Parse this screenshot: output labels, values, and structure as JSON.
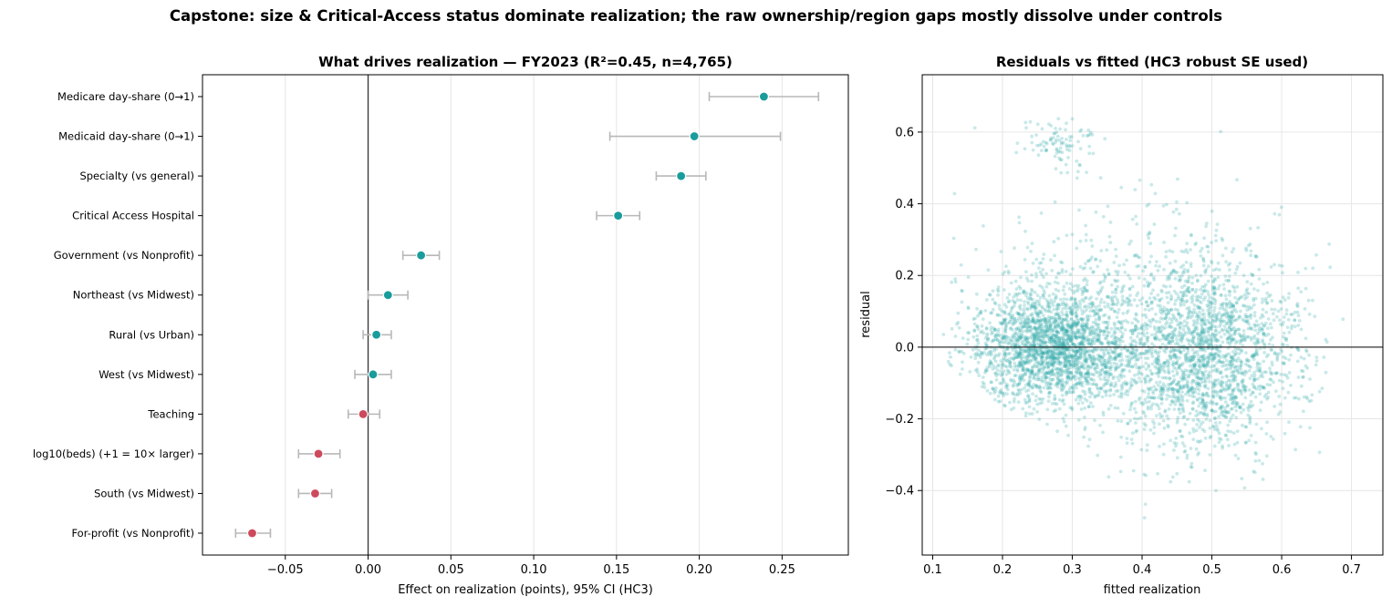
{
  "suptitle": "Capstone: size & Critical-Access status dominate realization; the raw ownership/region gaps mostly dissolve under controls",
  "colors": {
    "positive": "#1a9c9c",
    "negative": "#cc4a5c",
    "ci": "#b8b8b8",
    "scatter": "#2aa6a6",
    "zero_line": "#333333",
    "grid": "#e6e6e6"
  },
  "chart_data": [
    {
      "type": "scatter",
      "subtype": "coefficient-plot",
      "title": "What drives realization — FY2023 (R²=0.45, n=4,765)",
      "xlabel": "Effect on realization (points), 95% CI (HC3)",
      "ylabel": "",
      "xlim": [
        -0.1,
        0.29
      ],
      "xticks": [
        -0.05,
        0.0,
        0.05,
        0.1,
        0.15,
        0.2,
        0.25
      ],
      "xtick_labels": [
        "−0.05",
        "0.00",
        "0.05",
        "0.10",
        "0.15",
        "0.20",
        "0.25"
      ],
      "grid": "x",
      "items": [
        {
          "label": "Medicare day-share (0→1)",
          "est": 0.239,
          "lo": 0.206,
          "hi": 0.272
        },
        {
          "label": "Medicaid day-share (0→1)",
          "est": 0.197,
          "lo": 0.146,
          "hi": 0.249
        },
        {
          "label": "Specialty (vs general)",
          "est": 0.189,
          "lo": 0.174,
          "hi": 0.204
        },
        {
          "label": "Critical Access Hospital",
          "est": 0.151,
          "lo": 0.138,
          "hi": 0.164
        },
        {
          "label": "Government (vs Nonprofit)",
          "est": 0.032,
          "lo": 0.021,
          "hi": 0.043
        },
        {
          "label": "Northeast (vs Midwest)",
          "est": 0.012,
          "lo": 0.0,
          "hi": 0.024
        },
        {
          "label": "Rural (vs Urban)",
          "est": 0.005,
          "lo": -0.003,
          "hi": 0.014
        },
        {
          "label": "West (vs Midwest)",
          "est": 0.003,
          "lo": -0.008,
          "hi": 0.014
        },
        {
          "label": "Teaching",
          "est": -0.003,
          "lo": -0.012,
          "hi": 0.007
        },
        {
          "label": "log10(beds)  (+1 = 10× larger)",
          "est": -0.03,
          "lo": -0.042,
          "hi": -0.017
        },
        {
          "label": "South (vs Midwest)",
          "est": -0.032,
          "lo": -0.042,
          "hi": -0.022
        },
        {
          "label": "For-profit (vs Nonprofit)",
          "est": -0.07,
          "lo": -0.08,
          "hi": -0.059
        }
      ]
    },
    {
      "type": "scatter",
      "title": "Residuals vs fitted (HC3 robust SE used)",
      "xlabel": "fitted realization",
      "ylabel": "residual",
      "xlim": [
        0.085,
        0.745
      ],
      "ylim": [
        -0.58,
        0.76
      ],
      "xticks": [
        0.1,
        0.2,
        0.3,
        0.4,
        0.5,
        0.6,
        0.7
      ],
      "xtick_labels": [
        "0.1",
        "0.2",
        "0.3",
        "0.4",
        "0.5",
        "0.6",
        "0.7"
      ],
      "yticks": [
        -0.4,
        -0.2,
        0.0,
        0.2,
        0.4,
        0.6
      ],
      "ytick_labels": [
        "−0.4",
        "−0.2",
        "0.0",
        "0.2",
        "0.4",
        "0.6"
      ],
      "grid": "both",
      "n_points": 4765,
      "clusters": [
        {
          "x_mean": 0.27,
          "x_sd": 0.055,
          "y_mean": 0.0,
          "y_sd": 0.08,
          "share": 0.45
        },
        {
          "x_mean": 0.49,
          "x_sd": 0.065,
          "y_mean": -0.02,
          "y_sd": 0.13,
          "share": 0.42
        },
        {
          "x_mean": 0.28,
          "x_sd": 0.03,
          "y_mean": 0.57,
          "y_sd": 0.03,
          "share": 0.02
        },
        {
          "x_mean": 0.36,
          "x_sd": 0.12,
          "y_mean": 0.1,
          "y_sd": 0.16,
          "share": 0.11
        }
      ]
    }
  ]
}
